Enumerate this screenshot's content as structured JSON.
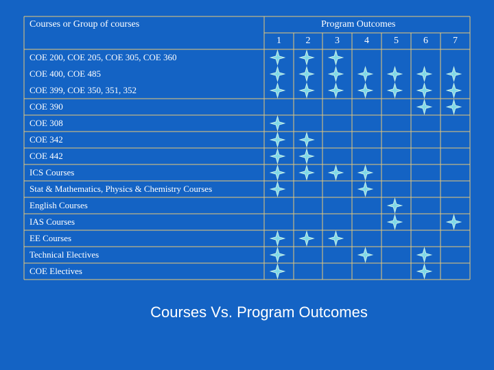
{
  "header": {
    "courses_label": "Courses or Group of courses",
    "outcomes_label": "Program Outcomes"
  },
  "outcome_numbers": [
    "1",
    "2",
    "3",
    "4",
    "5",
    "6",
    "7"
  ],
  "rows": [
    {
      "label": "COE 200, COE 205, COE 305, COE 360",
      "marks": [
        1,
        2,
        3
      ]
    },
    {
      "label": "COE 400, COE 485",
      "marks": [
        1,
        2,
        3,
        4,
        5,
        6,
        7
      ]
    },
    {
      "label": "COE 399, COE 350, 351, 352",
      "marks": [
        1,
        2,
        3,
        4,
        5,
        6,
        7
      ]
    },
    {
      "label": "COE 390",
      "marks": [
        6,
        7
      ]
    },
    {
      "label": "COE 308",
      "marks": [
        1
      ]
    },
    {
      "label": "COE 342",
      "marks": [
        1,
        2
      ]
    },
    {
      "label": "COE 442",
      "marks": [
        1,
        2
      ]
    },
    {
      "label": "ICS Courses",
      "marks": [
        1,
        2,
        3,
        4
      ]
    },
    {
      "label": "Stat & Mathematics, Physics & Chemistry Courses",
      "marks": [
        1,
        4
      ]
    },
    {
      "label": "English Courses",
      "marks": [
        5
      ]
    },
    {
      "label": "IAS Courses",
      "marks": [
        5,
        7
      ]
    },
    {
      "label": "EE Courses",
      "marks": [
        1,
        2,
        3
      ]
    },
    {
      "label": "Technical Electives",
      "marks": [
        1,
        4,
        6
      ]
    },
    {
      "label": "COE Electives",
      "marks": [
        1,
        6
      ]
    }
  ],
  "footer": {
    "title": "Courses Vs. Program Outcomes"
  },
  "colors": {
    "background": "#1463c4",
    "grid_line": "#e8c878",
    "mark_stroke": "#c8f0e8",
    "mark_fill": "#7fd8e8"
  },
  "mark_icon": "four-point-star-icon"
}
